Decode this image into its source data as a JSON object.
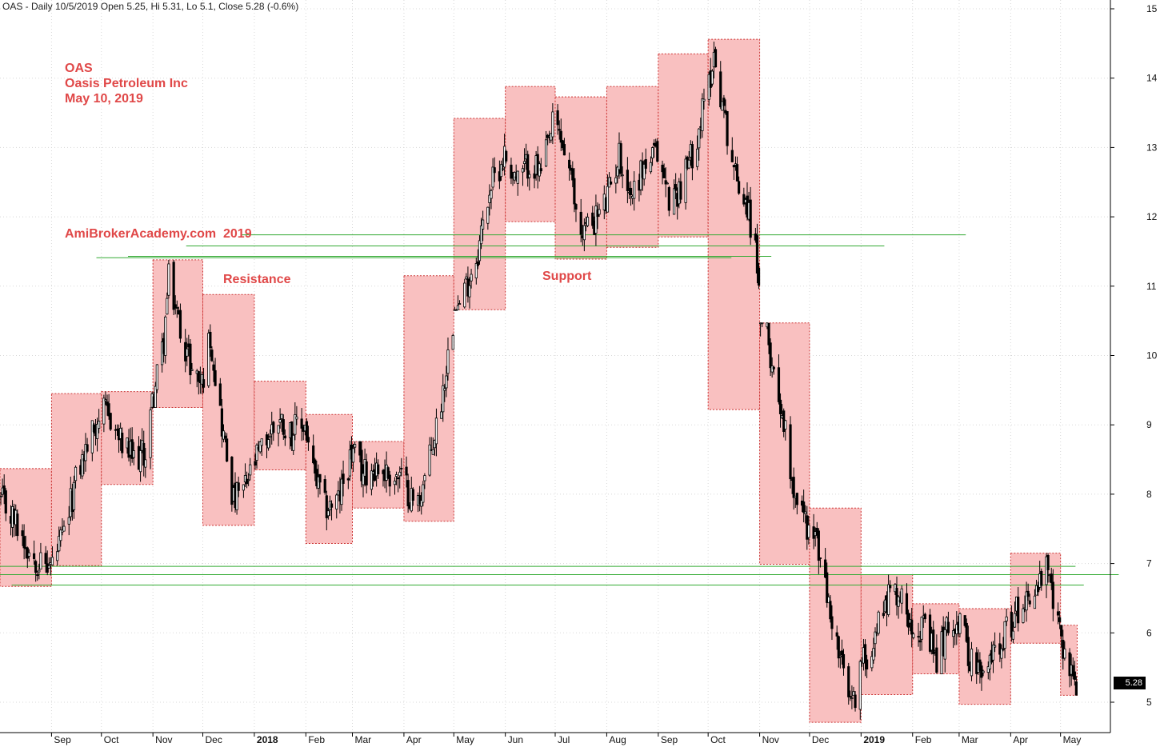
{
  "header": "OAS - Daily 10/5/2019 Open 5.25, Hi 5.31, Lo 5.1, Close 5.28 (-0.6%)",
  "annotations": {
    "ticker": "OAS",
    "company": "Oasis Petroleum Inc",
    "date": "May 10, 2019",
    "site": "AmiBrokerAcademy.com  2019",
    "resistance": "Resistance",
    "support": "Support"
  },
  "last_price_label": "5.28",
  "colors": {
    "box_fill": "#f9c0c0",
    "box_border": "#cc3333",
    "candle": "#000000",
    "level_line": "#33aa33",
    "grid": "#d8d8d8",
    "annotation": "#e04848"
  },
  "chart_data": {
    "type": "candlestick",
    "title": "OAS - Daily 10/5/2019 Open 5.25, Hi 5.31, Lo 5.1, Close 5.28 (-0.6%)",
    "ylim": [
      4.5,
      15.1
    ],
    "yticks": [
      5,
      6,
      7,
      8,
      9,
      10,
      11,
      12,
      13,
      14,
      15
    ],
    "x_start": "2017-08-01",
    "x_end": "2019-05-31",
    "month_ticks": [
      {
        "label": "Sep",
        "date": "2017-09-01"
      },
      {
        "label": "Oct",
        "date": "2017-10-01"
      },
      {
        "label": "Nov",
        "date": "2017-11-01"
      },
      {
        "label": "Dec",
        "date": "2017-12-01"
      },
      {
        "label": "2018",
        "date": "2018-01-01",
        "bold": true
      },
      {
        "label": "Feb",
        "date": "2018-02-01"
      },
      {
        "label": "Mar",
        "date": "2018-03-01"
      },
      {
        "label": "Apr",
        "date": "2018-04-01"
      },
      {
        "label": "May",
        "date": "2018-05-01"
      },
      {
        "label": "Jun",
        "date": "2018-06-01"
      },
      {
        "label": "Jul",
        "date": "2018-07-01"
      },
      {
        "label": "Aug",
        "date": "2018-08-01"
      },
      {
        "label": "Sep",
        "date": "2018-09-01"
      },
      {
        "label": "Oct",
        "date": "2018-10-01"
      },
      {
        "label": "Nov",
        "date": "2018-11-01"
      },
      {
        "label": "Dec",
        "date": "2018-12-01"
      },
      {
        "label": "2019",
        "date": "2019-01-01",
        "bold": true
      },
      {
        "label": "Feb",
        "date": "2019-02-01"
      },
      {
        "label": "Mar",
        "date": "2019-03-01"
      },
      {
        "label": "Apr",
        "date": "2019-04-01"
      },
      {
        "label": "May",
        "date": "2019-05-01"
      }
    ],
    "monthly_ranges": [
      {
        "start": "2017-08-01",
        "end": "2017-08-31",
        "high": 8.37,
        "low": 6.67
      },
      {
        "start": "2017-09-01",
        "end": "2017-09-30",
        "high": 9.45,
        "low": 6.97
      },
      {
        "start": "2017-10-01",
        "end": "2017-10-31",
        "high": 9.48,
        "low": 8.14
      },
      {
        "start": "2017-11-01",
        "end": "2017-11-30",
        "high": 11.38,
        "low": 9.25
      },
      {
        "start": "2017-12-01",
        "end": "2017-12-31",
        "high": 10.88,
        "low": 7.55
      },
      {
        "start": "2018-01-01",
        "end": "2018-01-31",
        "high": 9.63,
        "low": 8.35
      },
      {
        "start": "2018-02-01",
        "end": "2018-02-28",
        "high": 9.15,
        "low": 7.29
      },
      {
        "start": "2018-03-01",
        "end": "2018-03-31",
        "high": 8.76,
        "low": 7.8
      },
      {
        "start": "2018-04-01",
        "end": "2018-04-30",
        "high": 11.15,
        "low": 7.61
      },
      {
        "start": "2018-05-01",
        "end": "2018-05-31",
        "high": 13.42,
        "low": 10.66
      },
      {
        "start": "2018-06-01",
        "end": "2018-06-30",
        "high": 13.88,
        "low": 11.93
      },
      {
        "start": "2018-07-01",
        "end": "2018-07-31",
        "high": 13.73,
        "low": 11.39
      },
      {
        "start": "2018-08-01",
        "end": "2018-08-31",
        "high": 13.88,
        "low": 11.56
      },
      {
        "start": "2018-09-01",
        "end": "2018-09-30",
        "high": 14.35,
        "low": 11.71
      },
      {
        "start": "2018-10-01",
        "end": "2018-10-31",
        "high": 14.56,
        "low": 9.22
      },
      {
        "start": "2018-11-01",
        "end": "2018-11-30",
        "high": 10.47,
        "low": 6.99
      },
      {
        "start": "2018-12-01",
        "end": "2018-12-31",
        "high": 7.8,
        "low": 4.71
      },
      {
        "start": "2019-01-01",
        "end": "2019-01-31",
        "high": 6.84,
        "low": 5.11
      },
      {
        "start": "2019-02-01",
        "end": "2019-02-28",
        "high": 6.42,
        "low": 5.41
      },
      {
        "start": "2019-03-01",
        "end": "2019-03-31",
        "high": 6.35,
        "low": 4.97
      },
      {
        "start": "2019-04-01",
        "end": "2019-04-30",
        "high": 7.15,
        "low": 5.85
      },
      {
        "start": "2019-05-01",
        "end": "2019-05-10",
        "high": 6.11,
        "low": 5.1
      }
    ],
    "price_path": [
      [
        "2017-08-01",
        7.9
      ],
      [
        "2017-08-10",
        7.6
      ],
      [
        "2017-08-18",
        7.2
      ],
      [
        "2017-08-25",
        7.0
      ],
      [
        "2017-08-31",
        6.95
      ],
      [
        "2017-09-08",
        7.4
      ],
      [
        "2017-09-15",
        8.2
      ],
      [
        "2017-09-22",
        8.7
      ],
      [
        "2017-09-30",
        9.2
      ],
      [
        "2017-10-06",
        9.1
      ],
      [
        "2017-10-13",
        8.7
      ],
      [
        "2017-10-20",
        8.5
      ],
      [
        "2017-10-27",
        8.6
      ],
      [
        "2017-10-31",
        9.3
      ],
      [
        "2017-11-07",
        10.2
      ],
      [
        "2017-11-10",
        11.1
      ],
      [
        "2017-11-17",
        10.4
      ],
      [
        "2017-11-24",
        9.8
      ],
      [
        "2017-11-30",
        9.6
      ],
      [
        "2017-12-05",
        10.3
      ],
      [
        "2017-12-12",
        9.0
      ],
      [
        "2017-12-19",
        7.9
      ],
      [
        "2017-12-26",
        8.1
      ],
      [
        "2017-12-31",
        8.4
      ],
      [
        "2018-01-08",
        8.8
      ],
      [
        "2018-01-15",
        9.1
      ],
      [
        "2018-01-22",
        8.9
      ],
      [
        "2018-01-31",
        9.0
      ],
      [
        "2018-02-05",
        8.3
      ],
      [
        "2018-02-12",
        7.8
      ],
      [
        "2018-02-20",
        7.9
      ],
      [
        "2018-02-28",
        8.6
      ],
      [
        "2018-03-07",
        8.3
      ],
      [
        "2018-03-14",
        8.4
      ],
      [
        "2018-03-21",
        8.3
      ],
      [
        "2018-03-31",
        8.2
      ],
      [
        "2018-04-08",
        7.8
      ],
      [
        "2018-04-15",
        8.4
      ],
      [
        "2018-04-22",
        9.2
      ],
      [
        "2018-04-30",
        10.5
      ],
      [
        "2018-05-08",
        11.0
      ],
      [
        "2018-05-15",
        11.5
      ],
      [
        "2018-05-22",
        12.4
      ],
      [
        "2018-05-31",
        12.9
      ],
      [
        "2018-06-08",
        12.5
      ],
      [
        "2018-06-15",
        12.8
      ],
      [
        "2018-06-22",
        12.6
      ],
      [
        "2018-06-30",
        13.4
      ],
      [
        "2018-07-08",
        12.8
      ],
      [
        "2018-07-15",
        11.8
      ],
      [
        "2018-07-22",
        11.9
      ],
      [
        "2018-07-31",
        12.2
      ],
      [
        "2018-08-08",
        12.9
      ],
      [
        "2018-08-15",
        12.3
      ],
      [
        "2018-08-22",
        12.7
      ],
      [
        "2018-08-31",
        12.9
      ],
      [
        "2018-09-08",
        12.2
      ],
      [
        "2018-09-15",
        12.5
      ],
      [
        "2018-09-22",
        13.0
      ],
      [
        "2018-09-30",
        13.8
      ],
      [
        "2018-10-04",
        14.35
      ],
      [
        "2018-10-10",
        13.5
      ],
      [
        "2018-10-17",
        12.6
      ],
      [
        "2018-10-24",
        12.2
      ],
      [
        "2018-10-31",
        11.2
      ],
      [
        "2018-11-07",
        10.0
      ],
      [
        "2018-11-14",
        9.2
      ],
      [
        "2018-11-21",
        8.1
      ],
      [
        "2018-11-30",
        7.5
      ],
      [
        "2018-12-05",
        7.3
      ],
      [
        "2018-12-12",
        6.4
      ],
      [
        "2018-12-19",
        5.6
      ],
      [
        "2018-12-26",
        4.9
      ],
      [
        "2018-12-31",
        5.5
      ],
      [
        "2019-01-08",
        5.9
      ],
      [
        "2019-01-15",
        6.5
      ],
      [
        "2019-01-22",
        6.6
      ],
      [
        "2019-01-31",
        6.2
      ],
      [
        "2019-02-08",
        6.0
      ],
      [
        "2019-02-15",
        5.6
      ],
      [
        "2019-02-22",
        6.1
      ],
      [
        "2019-02-28",
        6.2
      ],
      [
        "2019-03-08",
        5.6
      ],
      [
        "2019-03-15",
        5.3
      ],
      [
        "2019-03-22",
        5.8
      ],
      [
        "2019-03-31",
        6.1
      ],
      [
        "2019-04-08",
        6.5
      ],
      [
        "2019-04-15",
        6.6
      ],
      [
        "2019-04-22",
        6.9
      ],
      [
        "2019-04-30",
        6.0
      ],
      [
        "2019-05-06",
        5.5
      ],
      [
        "2019-05-10",
        5.28
      ]
    ],
    "level_lines": [
      {
        "value": 11.41,
        "from": "2017-09-28",
        "to": "2018-10-15"
      },
      {
        "value": 11.43,
        "from": "2017-10-17",
        "to": "2018-11-08"
      },
      {
        "value": 11.58,
        "from": "2017-11-21",
        "to": "2019-01-15"
      },
      {
        "value": 11.74,
        "from": "2017-12-24",
        "to": "2019-03-05"
      },
      {
        "value": 6.96,
        "from": "2017-08-01",
        "to": "2019-05-10"
      },
      {
        "value": 6.84,
        "from": "2017-08-01",
        "to": "2019-06-05"
      },
      {
        "value": 6.69,
        "from": "2017-08-08",
        "to": "2019-05-15"
      }
    ],
    "last_close": 5.28
  }
}
